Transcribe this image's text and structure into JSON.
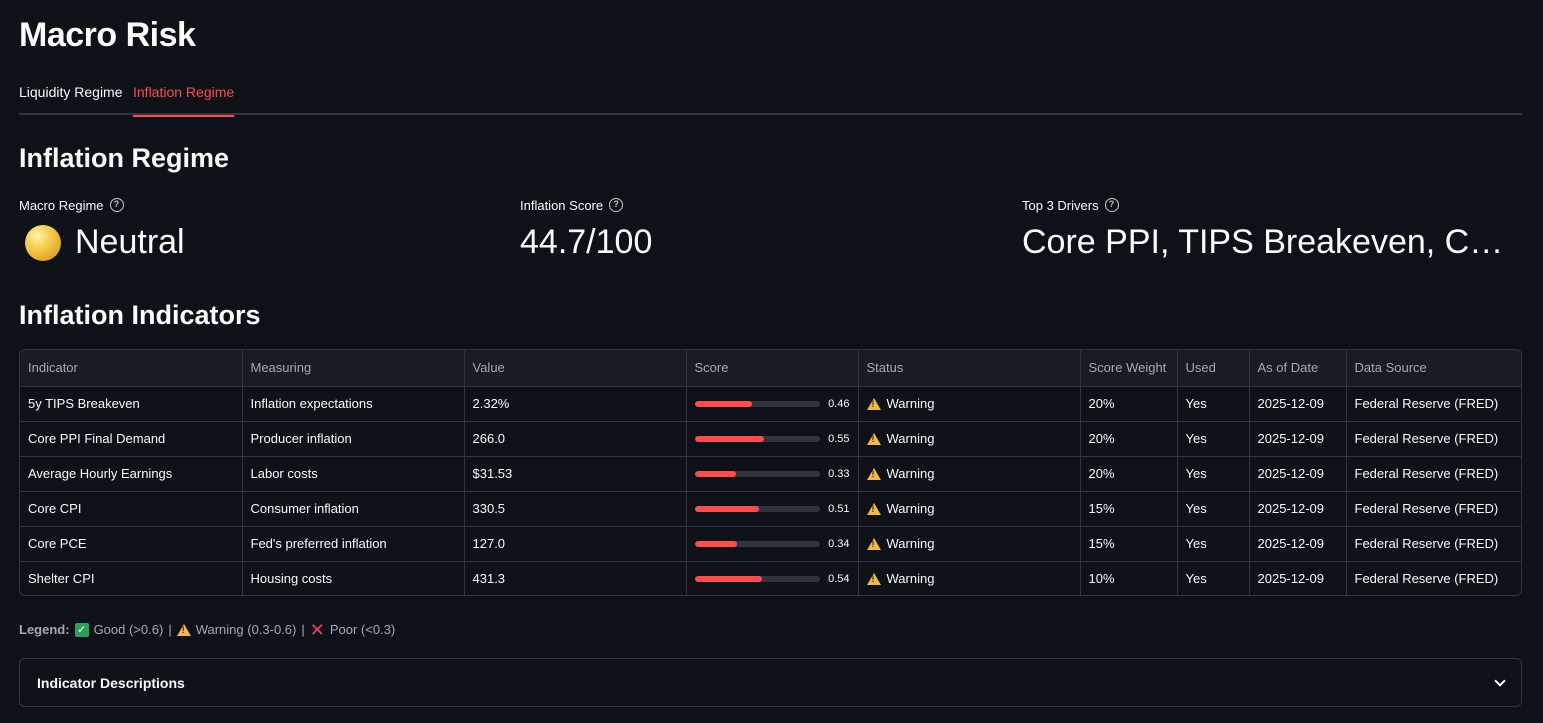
{
  "app": {
    "title": "Macro Risk"
  },
  "tabs": [
    {
      "label": "Liquidity Regime",
      "active": false
    },
    {
      "label": "Inflation Regime",
      "active": true
    }
  ],
  "section": {
    "title": "Inflation Regime"
  },
  "metrics": {
    "macro_regime": {
      "label": "Macro Regime",
      "value": "Neutral",
      "icon": "yellow-circle-icon"
    },
    "inflation_score": {
      "label": "Inflation Score",
      "value": "44.7/100"
    },
    "top_drivers": {
      "label": "Top 3 Drivers",
      "value": "Core PPI, TIPS Breakeven, Core…"
    }
  },
  "indicators": {
    "title": "Inflation Indicators",
    "columns": [
      "Indicator",
      "Measuring",
      "Value",
      "Score",
      "Status",
      "Score Weight",
      "Used",
      "As of Date",
      "Data Source"
    ],
    "rows": [
      {
        "indicator": "5y TIPS Breakeven",
        "measuring": "Inflation expectations",
        "value": "2.32%",
        "score": 0.46,
        "score_label": "0.46",
        "status": "Warning",
        "weight": "20%",
        "used": "Yes",
        "date": "2025-12-09",
        "source": "Federal Reserve (FRED)"
      },
      {
        "indicator": "Core PPI Final Demand",
        "measuring": "Producer inflation",
        "value": "266.0",
        "score": 0.55,
        "score_label": "0.55",
        "status": "Warning",
        "weight": "20%",
        "used": "Yes",
        "date": "2025-12-09",
        "source": "Federal Reserve (FRED)"
      },
      {
        "indicator": "Average Hourly Earnings",
        "measuring": "Labor costs",
        "value": "$31.53",
        "score": 0.33,
        "score_label": "0.33",
        "status": "Warning",
        "weight": "20%",
        "used": "Yes",
        "date": "2025-12-09",
        "source": "Federal Reserve (FRED)"
      },
      {
        "indicator": "Core CPI",
        "measuring": "Consumer inflation",
        "value": "330.5",
        "score": 0.51,
        "score_label": "0.51",
        "status": "Warning",
        "weight": "15%",
        "used": "Yes",
        "date": "2025-12-09",
        "source": "Federal Reserve (FRED)"
      },
      {
        "indicator": "Core PCE",
        "measuring": "Fed's preferred inflation",
        "value": "127.0",
        "score": 0.34,
        "score_label": "0.34",
        "status": "Warning",
        "weight": "15%",
        "used": "Yes",
        "date": "2025-12-09",
        "source": "Federal Reserve (FRED)"
      },
      {
        "indicator": "Shelter CPI",
        "measuring": "Housing costs",
        "value": "431.3",
        "score": 0.54,
        "score_label": "0.54",
        "status": "Warning",
        "weight": "10%",
        "used": "Yes",
        "date": "2025-12-09",
        "source": "Federal Reserve (FRED)"
      }
    ]
  },
  "legend": {
    "label": "Legend:",
    "good": "Good (>0.6)",
    "warning": "Warning (0.3-0.6)",
    "poor": "Poor (<0.3)",
    "sep": "|"
  },
  "expander": {
    "title": "Indicator Descriptions"
  },
  "colors": {
    "accent": "#ff4b4b",
    "background": "#0e1117",
    "warning": "#f2b847",
    "good": "#2e9f5a",
    "poor": "#e6445a"
  }
}
